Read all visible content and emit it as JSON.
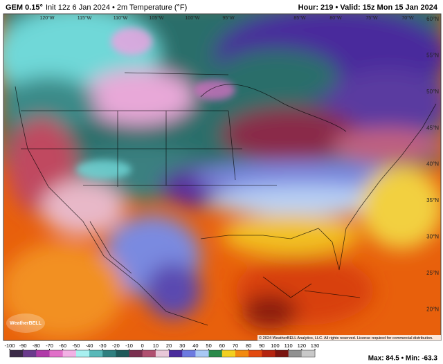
{
  "header": {
    "model": "GEM 0.15°",
    "description": "Init 12z 6 Jan 2024 • 2m Temperature (°F)",
    "right": "Hour: 219 • Valid: 15z Mon 15 Jan 2024"
  },
  "map": {
    "lat_labels": [
      "60°N",
      "55°N",
      "50°N",
      "45°N",
      "40°N",
      "35°N",
      "30°N",
      "25°N",
      "20°N"
    ],
    "lon_labels": [
      "120°W",
      "115°W",
      "110°W",
      "105°W",
      "100°W",
      "95°W",
      "85°W",
      "80°W",
      "75°W",
      "70°W"
    ],
    "copyright": "© 2024 WeatherBELL Analytics, LLC. All rights reserved. License required for commercial distribution.",
    "logo": "WeatherBELL"
  },
  "colorbar": {
    "ticks": [
      -100,
      -90,
      -80,
      -70,
      -60,
      -50,
      -40,
      -30,
      -20,
      -10,
      0,
      10,
      20,
      30,
      40,
      50,
      60,
      70,
      80,
      90,
      100,
      110,
      120,
      130
    ],
    "colors": [
      "#3b2a48",
      "#6a3a8c",
      "#b03aa8",
      "#e070c8",
      "#f2b0e4",
      "#a8f0f0",
      "#58b8b8",
      "#2f8080",
      "#1f5a5a",
      "#7a3050",
      "#b05070",
      "#e8c8d8",
      "#4a2c9c",
      "#6c7ae0",
      "#a8c8f4",
      "#2a8a4a",
      "#f2d020",
      "#f28a10",
      "#e24a10",
      "#b42410",
      "#7a1410",
      "#909090",
      "#c8c8c8"
    ]
  },
  "footer": {
    "stats": "Max: 84.5 • Min: -63.3"
  }
}
